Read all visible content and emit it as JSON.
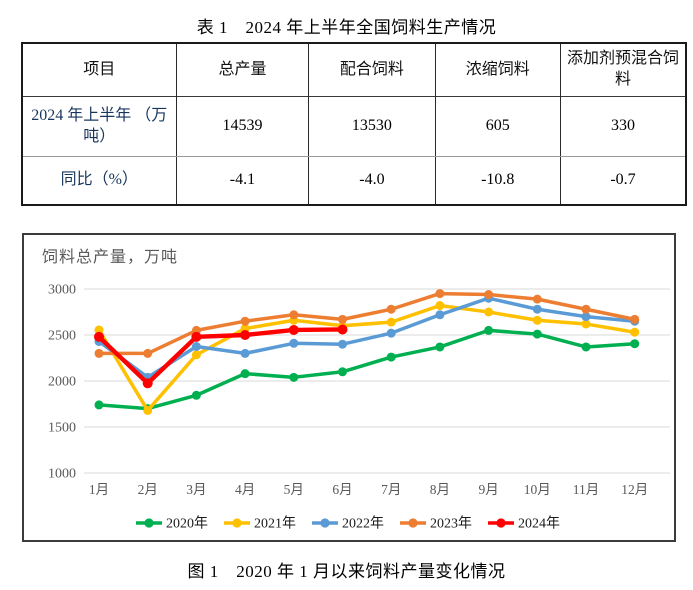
{
  "table": {
    "title": "表 1　2024 年上半年全国饲料生产情况",
    "headers": [
      "项目",
      "总产量",
      "配合饲料",
      "浓缩饲料",
      "添加剂预混合饲料"
    ],
    "rows": [
      {
        "label": "2024 年上半年 （万吨）",
        "values": [
          "14539",
          "13530",
          "605",
          "330"
        ]
      },
      {
        "label": "同比（%）",
        "values": [
          "-4.1",
          "-4.0",
          "-10.8",
          "-0.7"
        ]
      }
    ]
  },
  "chart_data": {
    "type": "line",
    "title": "饲料总产量，万吨",
    "x": [
      "1月",
      "2月",
      "3月",
      "4月",
      "5月",
      "6月",
      "7月",
      "8月",
      "9月",
      "10月",
      "11月",
      "12月"
    ],
    "ylim": [
      1000,
      3000
    ],
    "ytick_step": 500,
    "yticks": [
      1000,
      1500,
      2000,
      2500,
      3000
    ],
    "grid": true,
    "legend_position": "bottom",
    "series": [
      {
        "name": "2020年",
        "color": "#00B050",
        "emphasis": false,
        "values": [
          1740,
          1700,
          1845,
          2080,
          2040,
          2100,
          2260,
          2370,
          2550,
          2510,
          2370,
          2405
        ]
      },
      {
        "name": "2021年",
        "color": "#FFC000",
        "emphasis": false,
        "values": [
          2555,
          1680,
          2285,
          2570,
          2660,
          2600,
          2640,
          2820,
          2750,
          2660,
          2620,
          2530
        ]
      },
      {
        "name": "2022年",
        "color": "#5B9BD5",
        "emphasis": false,
        "values": [
          2430,
          2040,
          2375,
          2300,
          2410,
          2400,
          2520,
          2720,
          2900,
          2780,
          2700,
          2650
        ]
      },
      {
        "name": "2023年",
        "color": "#ED7D31",
        "emphasis": false,
        "values": [
          2300,
          2300,
          2550,
          2650,
          2720,
          2670,
          2780,
          2950,
          2940,
          2890,
          2780,
          2670
        ]
      },
      {
        "name": "2024年",
        "color": "#FF0000",
        "emphasis": true,
        "values": [
          2480,
          1975,
          2480,
          2500,
          2555,
          2560
        ]
      }
    ]
  },
  "figure_caption": "图 1　2020 年 1 月以来饲料产量变化情况"
}
